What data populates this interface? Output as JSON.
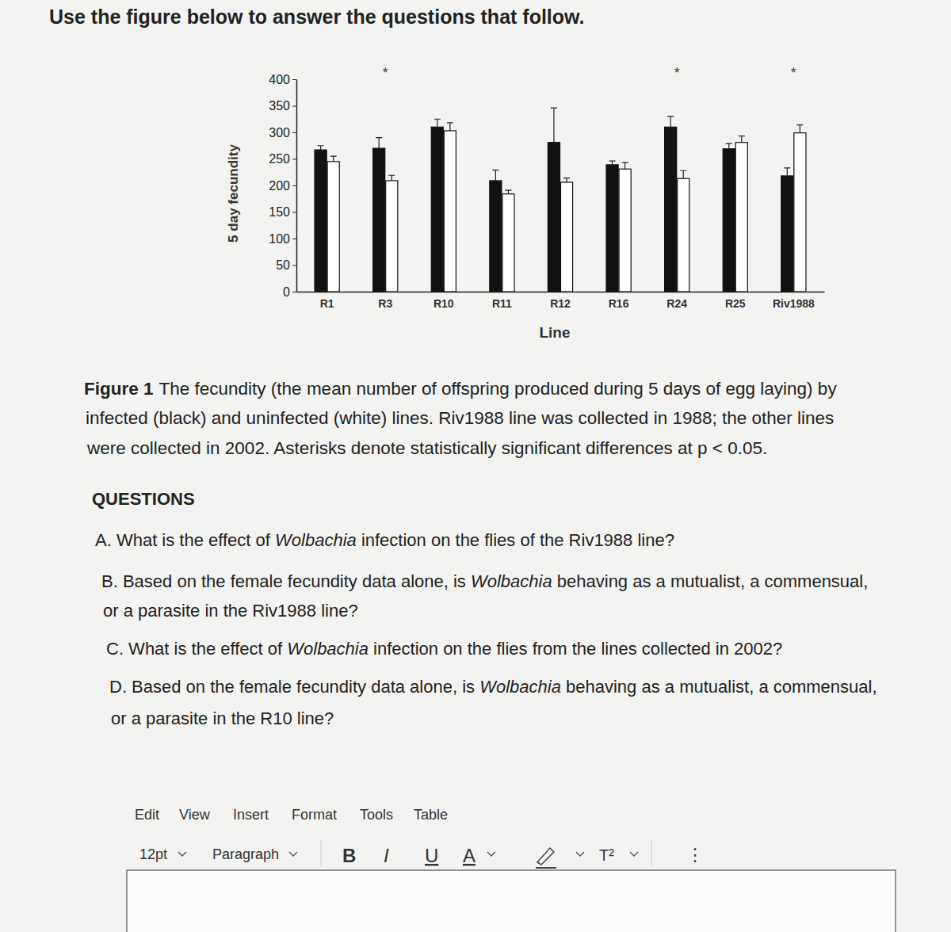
{
  "heading": "Use the figure below to answer the questions that follow.",
  "chart_data": {
    "type": "bar",
    "y_label": "5 day fecundity",
    "x_label": "Line",
    "categories": [
      "R1",
      "R3",
      "R10",
      "R11",
      "R12",
      "R16",
      "R24",
      "R25",
      "Riv1988"
    ],
    "series": [
      {
        "color": "#111111",
        "values": [
          267,
          270,
          310,
          209,
          281,
          239,
          310,
          269,
          218
        ],
        "errors": [
          8,
          20,
          15,
          20,
          65,
          7,
          20,
          10,
          15
        ]
      },
      {
        "color": "#ffffff",
        "values": [
          245,
          209,
          303,
          184,
          206,
          231,
          213,
          281,
          299
        ],
        "errors": [
          10,
          10,
          15,
          7,
          8,
          12,
          15,
          12,
          15
        ]
      }
    ],
    "ylim": [
      0,
      400
    ],
    "yticks": [
      0,
      50,
      100,
      150,
      200,
      250,
      300,
      350,
      400
    ],
    "grid": false,
    "annotations": [
      {
        "category": "R3",
        "text": "*"
      },
      {
        "category": "R24",
        "text": "*"
      },
      {
        "category": "Riv1988",
        "text": "*"
      }
    ]
  },
  "caption": {
    "label": "Figure 1",
    "lines": [
      "The fecundity (the mean number of offspring produced during 5 days of egg laying) by",
      "infected (black) and uninfected (white) lines. Riv1988 line was collected in 1988; the other lines",
      "were collected in 2002. Asterisks denote statistically significant differences at p < 0.05."
    ]
  },
  "questions": {
    "title": "QUESTIONS",
    "lines": [
      [
        {
          "text": "A. What is the effect of "
        },
        {
          "text": "Wolbachia",
          "italic": true
        },
        {
          "text": " infection on the flies of the Riv1988 line?"
        }
      ],
      [
        {
          "text": "B. Based on the female fecundity data alone, is "
        },
        {
          "text": "Wolbachia",
          "italic": true
        },
        {
          "text": " behaving as a mutualist, a commensual,"
        }
      ],
      [
        {
          "text": "or a parasite in the Riv1988 line?"
        }
      ],
      [
        {
          "text": "C. What is the effect of "
        },
        {
          "text": "Wolbachia",
          "italic": true
        },
        {
          "text": " infection on the flies from the lines collected in 2002?"
        }
      ],
      [
        {
          "text": "D. Based on the female fecundity data alone, is "
        },
        {
          "text": "Wolbachia",
          "italic": true
        },
        {
          "text": " behaving as a mutualist, a commensual,"
        }
      ],
      [
        {
          "text": "or a parasite in the R10 line?"
        }
      ]
    ]
  },
  "editor": {
    "menu": [
      "Edit",
      "View",
      "Insert",
      "Format",
      "Tools",
      "Table"
    ],
    "font_size": "12pt",
    "block": "Paragraph",
    "buttons": [
      "B",
      "I",
      "U",
      "A"
    ],
    "superscript": "T²",
    "more": "⋮"
  }
}
